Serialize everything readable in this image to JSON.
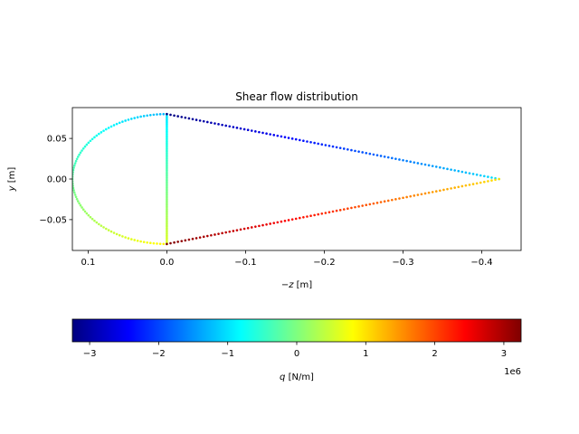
{
  "chart_data": {
    "type": "scatter",
    "title": "Shear flow distribution",
    "xlabel_prefix": "−",
    "xlabel_var": "z",
    "xlabel_unit": " [m]",
    "ylabel_var": "y",
    "ylabel_unit": " [m]",
    "xlim": [
      0.12,
      -0.45
    ],
    "ylim": [
      -0.088,
      0.088
    ],
    "xticks": [
      {
        "value": 0.1,
        "label": "0.1"
      },
      {
        "value": 0.0,
        "label": "0.0"
      },
      {
        "value": -0.1,
        "label": "−0.1"
      },
      {
        "value": -0.2,
        "label": "−0.2"
      },
      {
        "value": -0.3,
        "label": "−0.3"
      },
      {
        "value": -0.4,
        "label": "−0.4"
      }
    ],
    "yticks": [
      {
        "value": 0.05,
        "label": "0.05"
      },
      {
        "value": 0.0,
        "label": "0.00"
      },
      {
        "value": -0.05,
        "label": "−0.05"
      }
    ],
    "grid": false,
    "colormap": "jet",
    "colorbar": {
      "label_var": "q",
      "label_unit": " [N/m]",
      "range": [
        -3.25,
        3.25
      ],
      "offset_text": "1e6",
      "ticks": [
        {
          "value": -3,
          "label": "−3"
        },
        {
          "value": -2,
          "label": "−2"
        },
        {
          "value": -1,
          "label": "−1"
        },
        {
          "value": 0,
          "label": "0"
        },
        {
          "value": 1,
          "label": "1"
        },
        {
          "value": 2,
          "label": "2"
        },
        {
          "value": 3,
          "label": "3"
        }
      ]
    },
    "segments": [
      {
        "name": "semicircle-nose",
        "shape": "arc",
        "center": [
          0.0,
          0.0
        ],
        "radius": 0.08,
        "q_start": -1.3,
        "q_end": 0.9
      },
      {
        "name": "spar-web",
        "shape": "line",
        "from": [
          0.0,
          0.08
        ],
        "to": [
          0.0,
          -0.08
        ],
        "q_start": -1.0,
        "q_end": 0.6
      },
      {
        "name": "upper-skin",
        "shape": "line",
        "from": [
          0.0,
          0.08
        ],
        "to": [
          -0.422,
          0.0
        ],
        "q_start": -3.25,
        "q_end": -1.0
      },
      {
        "name": "lower-skin",
        "shape": "line",
        "from": [
          -0.422,
          0.0
        ],
        "to": [
          0.0,
          -0.08
        ],
        "q_start": 1.0,
        "q_end": 3.25
      }
    ]
  }
}
